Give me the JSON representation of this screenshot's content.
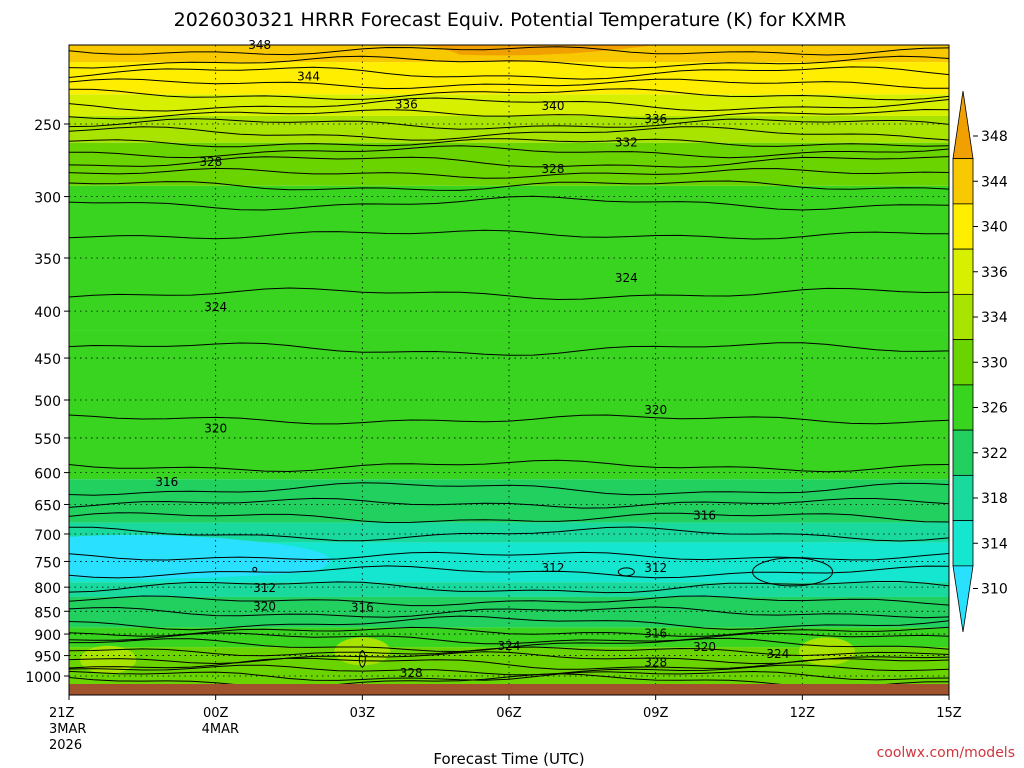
{
  "chart_data": {
    "type": "heatmap",
    "title": "2026030321 HRRR Forecast Equiv. Potential Temperature (K) for KXMR",
    "xlabel": "Forecast Time (UTC)",
    "ylabel": "",
    "x_ticks": [
      {
        "hour": 0,
        "lines": [
          "21Z",
          "3MAR",
          "2026"
        ]
      },
      {
        "hour": 3,
        "lines": [
          "00Z",
          "4MAR"
        ]
      },
      {
        "hour": 6,
        "lines": [
          "03Z"
        ]
      },
      {
        "hour": 9,
        "lines": [
          "06Z"
        ]
      },
      {
        "hour": 12,
        "lines": [
          "09Z"
        ]
      },
      {
        "hour": 15,
        "lines": [
          "12Z"
        ]
      },
      {
        "hour": 18,
        "lines": [
          "15Z"
        ]
      }
    ],
    "x_range_hours": [
      0,
      18
    ],
    "y_ticks": [
      250,
      300,
      350,
      400,
      450,
      500,
      550,
      600,
      650,
      700,
      750,
      800,
      850,
      900,
      950,
      1000
    ],
    "y_range_hpa": [
      1025,
      200
    ],
    "y_scale": "log-pressure",
    "colorbar": {
      "labels": [
        "348",
        "344",
        "340",
        "336",
        "334",
        "330",
        "326",
        "322",
        "318",
        "314",
        "310"
      ],
      "colors": [
        "#f0a000",
        "#f8c800",
        "#ffee00",
        "#d6f000",
        "#a8e400",
        "#6ad400",
        "#38d420",
        "#22d060",
        "#1ad99c",
        "#14e6d0",
        "#2ae0ff"
      ],
      "extend": "both"
    },
    "contour_levels_labeled": [
      312,
      316,
      320,
      324,
      328,
      332,
      336,
      340,
      344,
      348
    ],
    "contour_labels": [
      {
        "text": "348",
        "hour": 3.9,
        "p": 205
      },
      {
        "text": "344",
        "hour": 4.9,
        "p": 222
      },
      {
        "text": "336",
        "hour": 6.9,
        "p": 238
      },
      {
        "text": "340",
        "hour": 9.9,
        "p": 239
      },
      {
        "text": "336",
        "hour": 12.0,
        "p": 247
      },
      {
        "text": "332",
        "hour": 11.4,
        "p": 262
      },
      {
        "text": "328",
        "hour": 9.9,
        "p": 280
      },
      {
        "text": "328",
        "hour": 2.9,
        "p": 275
      },
      {
        "text": "324",
        "hour": 11.4,
        "p": 368
      },
      {
        "text": "324",
        "hour": 3.0,
        "p": 396
      },
      {
        "text": "320",
        "hour": 12.0,
        "p": 513
      },
      {
        "text": "320",
        "hour": 3.0,
        "p": 537
      },
      {
        "text": "316",
        "hour": 2.0,
        "p": 614
      },
      {
        "text": "316",
        "hour": 13.0,
        "p": 668
      },
      {
        "text": "312",
        "hour": 9.9,
        "p": 762
      },
      {
        "text": "312",
        "hour": 12.0,
        "p": 762
      },
      {
        "text": "312",
        "hour": 4.0,
        "p": 802
      },
      {
        "text": "320",
        "hour": 4.0,
        "p": 840
      },
      {
        "text": "316",
        "hour": 6.0,
        "p": 842
      },
      {
        "text": "316",
        "hour": 12.0,
        "p": 899
      },
      {
        "text": "324",
        "hour": 9.0,
        "p": 927
      },
      {
        "text": "320",
        "hour": 13.0,
        "p": 930
      },
      {
        "text": "324",
        "hour": 14.5,
        "p": 946
      },
      {
        "text": "328",
        "hour": 12.0,
        "p": 967
      },
      {
        "text": "328",
        "hour": 7.0,
        "p": 992
      }
    ],
    "grid": true,
    "ground_color": "#a0522d"
  },
  "credit": "coolwx.com/models"
}
